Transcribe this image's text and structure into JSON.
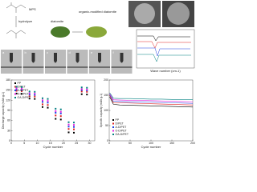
{
  "schematic": {
    "labels": [
      "MPS",
      "hydrolyze",
      "diatomite",
      "organic-modified diatomite"
    ]
  },
  "contact_angle": {
    "panels": [
      "a",
      "b",
      "c",
      "d",
      "e",
      "f"
    ]
  },
  "ftir": {
    "x_label": "Wave number (cm-1)"
  },
  "chart_data": [
    {
      "type": "scatter",
      "x_label": "Cycle number",
      "y_label": "Discharge capacity (mAh g-1)",
      "x": [
        2,
        4,
        7,
        9,
        12,
        14,
        17,
        19,
        22,
        24,
        27,
        29
      ],
      "xlim": [
        0,
        32
      ],
      "xticks": [
        0,
        5,
        10,
        15,
        20,
        25,
        30
      ],
      "ylim": [
        0,
        180
      ],
      "yticks": [
        0,
        30,
        60,
        90,
        120,
        150,
        180
      ],
      "series": [
        {
          "name": "PP",
          "color": "#000000",
          "values": [
            140,
            139,
            125,
            124,
            100,
            98,
            65,
            63,
            25,
            24,
            138,
            137
          ]
        },
        {
          "name": "D/PET",
          "color": "#e02020",
          "values": [
            148,
            147,
            132,
            131,
            108,
            106,
            75,
            73,
            35,
            34,
            146,
            145
          ]
        },
        {
          "name": "A-D/PET",
          "color": "#2040e0",
          "values": [
            152,
            151,
            137,
            136,
            115,
            113,
            83,
            81,
            42,
            41,
            150,
            149
          ]
        },
        {
          "name": "O-D/PET",
          "color": "#e020e0",
          "values": [
            155,
            154,
            141,
            140,
            120,
            118,
            88,
            86,
            48,
            47,
            153,
            152
          ]
        },
        {
          "name": "OA-D/PET",
          "color": "#008080",
          "values": [
            160,
            159,
            146,
            145,
            126,
            124,
            95,
            93,
            55,
            54,
            158,
            157
          ]
        }
      ]
    },
    {
      "type": "line",
      "x_label": "Cycle number",
      "y_label": "Specific capacity (mAh g-1)",
      "x": [
        1,
        10,
        25,
        50,
        75,
        100,
        125,
        150,
        175,
        200
      ],
      "xlim": [
        0,
        200
      ],
      "xticks": [
        0,
        50,
        100,
        150,
        200
      ],
      "ylim": [
        0,
        200
      ],
      "yticks": [
        0,
        50,
        100,
        150,
        200
      ],
      "series": [
        {
          "name": "PP",
          "color": "#000000",
          "values": [
            145,
            120,
            118,
            117,
            116,
            115,
            114,
            113,
            112,
            111
          ]
        },
        {
          "name": "D/PET",
          "color": "#e02020",
          "values": [
            150,
            125,
            125,
            124,
            123,
            122,
            121,
            120,
            119,
            118
          ]
        },
        {
          "name": "A-D/PET",
          "color": "#2040e0",
          "values": [
            152,
            130,
            129,
            128,
            128,
            127,
            126,
            125,
            124,
            123
          ]
        },
        {
          "name": "O-D/PET",
          "color": "#e020e0",
          "values": [
            155,
            135,
            134,
            133,
            133,
            132,
            131,
            130,
            129,
            128
          ]
        },
        {
          "name": "OA-D/PET",
          "color": "#008080",
          "values": [
            158,
            140,
            139,
            139,
            138,
            137,
            137,
            136,
            135,
            135
          ]
        }
      ]
    }
  ]
}
